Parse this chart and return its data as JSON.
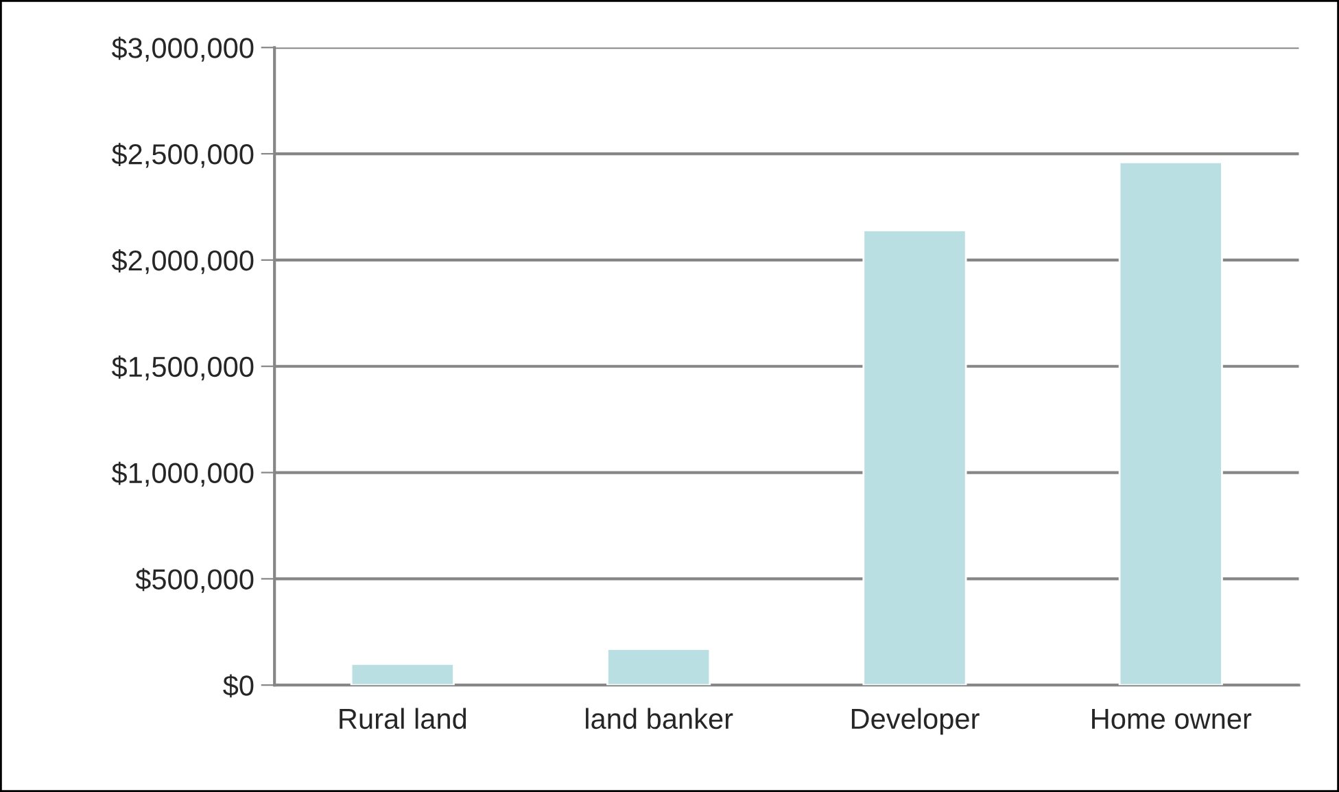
{
  "chart_data": {
    "type": "bar",
    "categories": [
      "Rural land",
      "land banker",
      "Developer",
      "Home owner"
    ],
    "values": [
      100000,
      170000,
      2140000,
      2460000
    ],
    "color": "#b9dfe2",
    "ylim": [
      0,
      3000000
    ],
    "yticks": [
      {
        "value": 0,
        "label": "$0"
      },
      {
        "value": 500000,
        "label": "$500,000"
      },
      {
        "value": 1000000,
        "label": "$1,000,000"
      },
      {
        "value": 1500000,
        "label": "$1,500,000"
      },
      {
        "value": 2000000,
        "label": "$2,000,000"
      },
      {
        "value": 2500000,
        "label": "$2,500,000"
      },
      {
        "value": 3000000,
        "label": "$3,000,000"
      }
    ],
    "grid": "y",
    "legend": false
  }
}
